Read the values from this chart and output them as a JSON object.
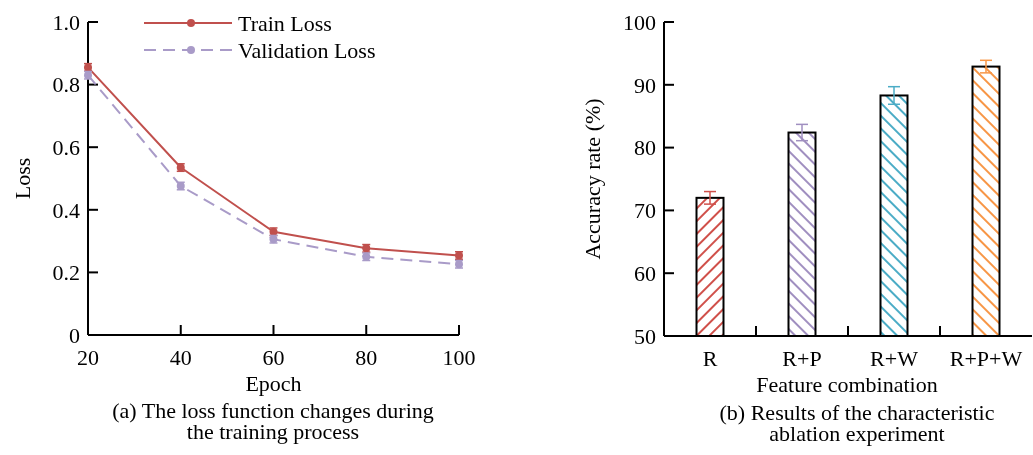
{
  "chart_data": [
    {
      "type": "line",
      "xlabel": "Epoch",
      "ylabel": "Loss",
      "annotations": [
        "(a) The loss function changes during the training process"
      ],
      "x": [
        20,
        40,
        60,
        80,
        100
      ],
      "xlim": [
        20,
        100
      ],
      "xticks": [
        20,
        40,
        60,
        80,
        100
      ],
      "ylim": [
        0,
        1
      ],
      "yticks": [
        0,
        0.2,
        0.4,
        0.6,
        {
          "value": 0.8,
          "label": "0.8"
        },
        {
          "value": 1,
          "label": "1.0"
        }
      ],
      "marker": "circle",
      "legend": "top right",
      "grid": false,
      "series": [
        {
          "name": "Train Loss",
          "color": "#c0504d",
          "values": [
            0.855,
            0.535,
            0.33,
            0.277,
            0.254
          ],
          "errors": [
            0.012,
            0.012,
            0.012,
            0.012,
            0.012
          ],
          "line_style": "solid"
        },
        {
          "name": "Validation Loss",
          "color": "#a99bc8",
          "values": [
            0.83,
            0.476,
            0.306,
            0.25,
            0.226
          ],
          "errors": [
            0.012,
            0.012,
            0.012,
            0.012,
            0.012
          ],
          "line_style": "dashed"
        }
      ]
    },
    {
      "type": "bar",
      "xlabel": "Feature combination",
      "ylabel": "Accuracy rate (%)",
      "annotations": [
        "(b) Results of the characteristic ablation experiment"
      ],
      "categories": [
        "R",
        "R+P",
        "R+W",
        "R+P+W"
      ],
      "values": [
        72,
        82.4,
        88.3,
        92.9
      ],
      "errors": [
        1,
        1.3,
        1.4,
        1
      ],
      "colors": [
        "#d0504a",
        "#a08fc0",
        "#4bacc6",
        "#f79646"
      ],
      "ylim": [
        50,
        100
      ],
      "yticks": [
        50,
        60,
        70,
        80,
        90,
        100
      ],
      "grid": false
    }
  ]
}
